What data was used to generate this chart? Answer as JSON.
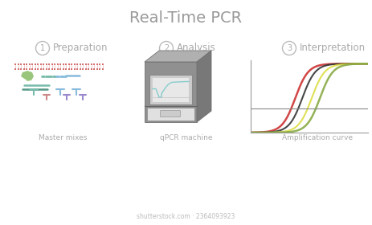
{
  "title": "Real-Time PCR",
  "title_color": "#999999",
  "title_fontsize": 14,
  "background_color": "#ffffff",
  "step_numbers": [
    "1",
    "2",
    "3"
  ],
  "step_labels": [
    "Preparation",
    "Analysis",
    "Interpretation"
  ],
  "step_sublabels": [
    "Master mixes",
    "qPCR machine",
    "Amplification curve"
  ],
  "step_label_color": "#aaaaaa",
  "step_number_color": "#aaaaaa",
  "circle_edge_color": "#bbbbbb",
  "dna_color": "#d47070",
  "primer_green_color": "#88bb66",
  "primer_blue_color": "#88bbdd",
  "primer_teal_color": "#77bbaa",
  "primer_yellow_color": "#ddbb55",
  "primer_pink_color": "#cc8888",
  "primer_purple_color": "#9988cc",
  "machine_body_color": "#909090",
  "machine_side_color": "#787878",
  "machine_top_color": "#b0b0b0",
  "machine_frame_color": "#cccccc",
  "machine_screen_color": "#e8e8e8",
  "machine_screen_line1": "#88cccc",
  "machine_screen_line2": "#aaaaaa",
  "machine_tray_color": "#e0e0e0",
  "machine_tray_bar": "#cccccc",
  "curve_color1": "#cc3333",
  "curve_color2": "#333333",
  "curve_color3": "#dddd44",
  "curve_color4": "#88aa44",
  "threshold_color": "#888888",
  "axis_color": "#999999",
  "shutterstock_text": "shutterstock.com · 2364093923"
}
